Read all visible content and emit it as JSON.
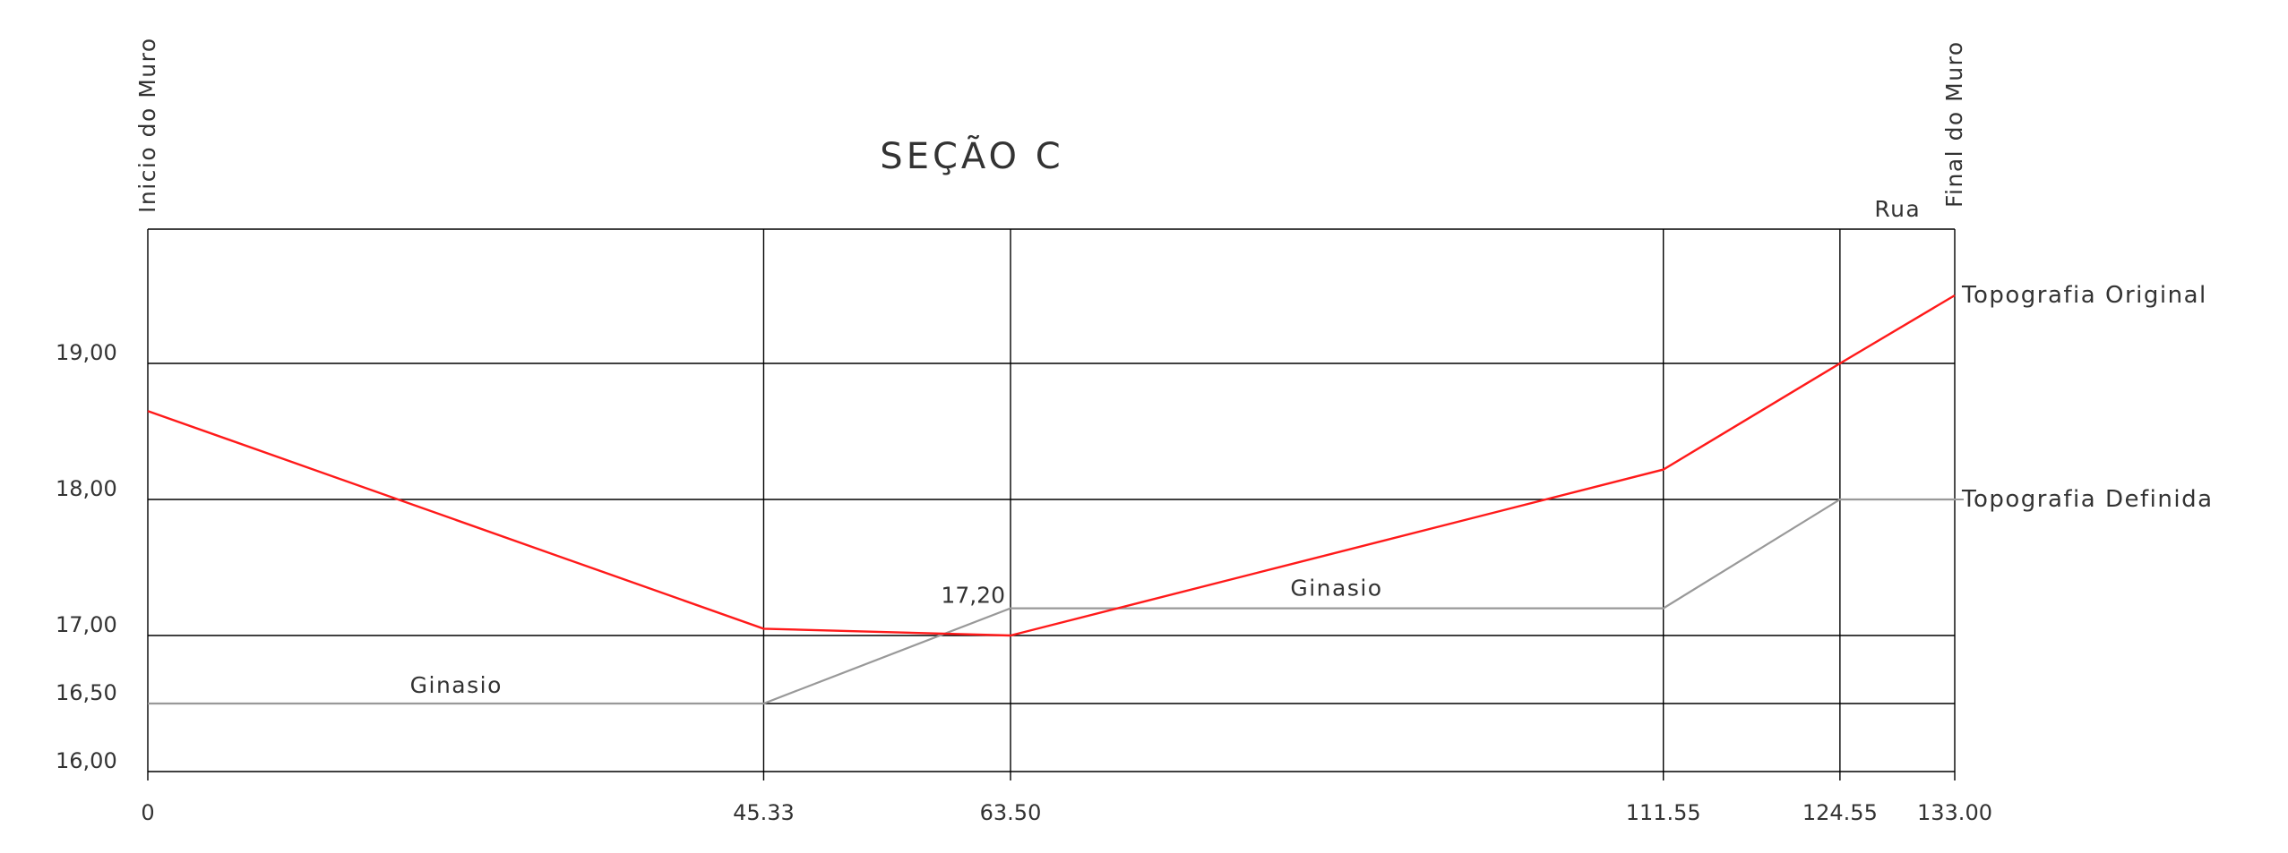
{
  "chart_data": {
    "type": "line",
    "title": "SEÇÃO C",
    "xlabel": "",
    "ylabel": "",
    "x": [
      0,
      45.33,
      63.5,
      111.55,
      124.55,
      133.0
    ],
    "x_tick_labels": [
      "0",
      "45.33",
      "63.50",
      "111.55",
      "124.55",
      "133.00"
    ],
    "xlim": [
      0,
      133.0
    ],
    "ylim": [
      16.0,
      20.0
    ],
    "y_ticks": [
      16.0,
      16.5,
      17.0,
      18.0,
      19.0
    ],
    "y_tick_labels": [
      "16,00",
      "16,50",
      "17,00",
      "18,00",
      "19,00"
    ],
    "grid": true,
    "series": [
      {
        "name": "Topografia Original",
        "color": "#ff1a1a",
        "points": [
          {
            "x": 0,
            "y": 18.65
          },
          {
            "x": 45.33,
            "y": 17.05
          },
          {
            "x": 63.5,
            "y": 17.0
          },
          {
            "x": 111.55,
            "y": 18.22
          },
          {
            "x": 124.55,
            "y": 19.0
          },
          {
            "x": 133.0,
            "y": 19.5
          }
        ]
      },
      {
        "name": "Topografia Definida",
        "color": "#999999",
        "points": [
          {
            "x": 0,
            "y": 16.5
          },
          {
            "x": 45.33,
            "y": 16.5
          },
          {
            "x": 63.5,
            "y": 17.2
          },
          {
            "x": 111.55,
            "y": 17.2
          },
          {
            "x": 124.55,
            "y": 18.0
          },
          {
            "x": 133.0,
            "y": 18.0
          }
        ]
      }
    ],
    "annotations": [
      {
        "text": "Inicio do Muro",
        "x": 0,
        "orientation": "vertical",
        "position": "above-plot"
      },
      {
        "text": "Final do Muro",
        "x": 133.0,
        "orientation": "vertical",
        "position": "above-plot"
      },
      {
        "text": "Rua",
        "x": 128.8,
        "position": "above-plot"
      },
      {
        "text": "Ginasio",
        "x": 22.7,
        "y": 16.5
      },
      {
        "text": "Ginasio",
        "x": 87.5,
        "y": 17.2
      },
      {
        "text": "17,20",
        "x": 63.5,
        "y": 17.2
      }
    ],
    "colors": {
      "grid": "#000000",
      "original": "#ff1a1a",
      "definida": "#999999"
    }
  }
}
